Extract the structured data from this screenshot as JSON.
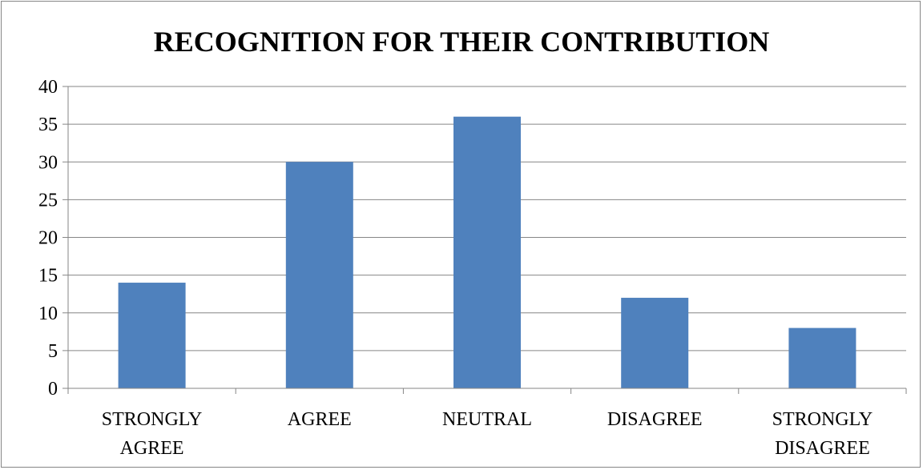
{
  "chart_data": {
    "type": "bar",
    "title": "RECOGNITION FOR THEIR CONTRIBUTION",
    "categories": [
      [
        "STRONGLY",
        "AGREE"
      ],
      [
        "AGREE"
      ],
      [
        "NEUTRAL"
      ],
      [
        "DISAGREE"
      ],
      [
        "STRONGLY",
        "DISAGREE"
      ]
    ],
    "values": [
      14,
      30,
      36,
      12,
      8
    ],
    "ylim": [
      0,
      40
    ],
    "yticks": [
      0,
      5,
      10,
      15,
      20,
      25,
      30,
      35,
      40
    ],
    "grid": true,
    "legend": "none",
    "bar_color": "#4F81BD",
    "grid_color": "#868686"
  }
}
